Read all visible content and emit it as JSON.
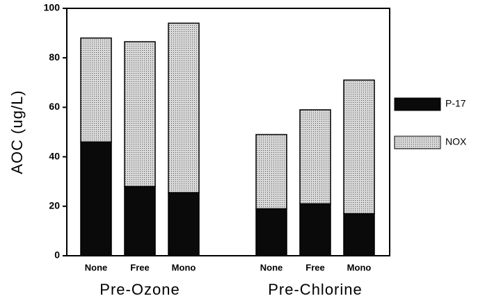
{
  "chart_data": {
    "type": "stacked_bar",
    "y_label": "AOC (ug/L)",
    "groups": [
      {
        "name": "Pre-Ozone",
        "categories": [
          "None",
          "Free",
          "Mono"
        ]
      },
      {
        "name": "Pre-Chlorine",
        "categories": [
          "None",
          "Free",
          "Mono"
        ]
      }
    ],
    "series": [
      {
        "name": "P-17",
        "color": "#0a0a0a",
        "values": [
          46,
          28,
          25.5,
          19,
          21,
          17
        ]
      },
      {
        "name": "NOX",
        "color": "#c4c4c4",
        "values": [
          42,
          58.5,
          68.5,
          30,
          38,
          54
        ]
      }
    ],
    "ylim": [
      0,
      100
    ],
    "yticks": [
      0,
      20,
      40,
      60,
      80,
      100
    ],
    "legend": "right"
  }
}
